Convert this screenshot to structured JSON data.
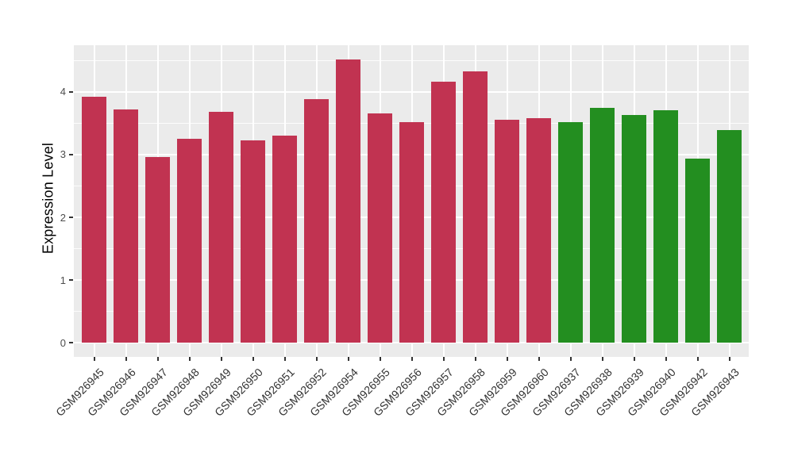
{
  "chart_data": {
    "type": "bar",
    "title": "",
    "xlabel": "",
    "ylabel": "Expression Level",
    "categories": [
      "GSM926945",
      "GSM926946",
      "GSM926947",
      "GSM926948",
      "GSM926949",
      "GSM926950",
      "GSM926951",
      "GSM926952",
      "GSM926954",
      "GSM926955",
      "GSM926956",
      "GSM926957",
      "GSM926958",
      "GSM926959",
      "GSM926960",
      "GSM926937",
      "GSM926938",
      "GSM926939",
      "GSM926940",
      "GSM926942",
      "GSM926943"
    ],
    "values": [
      3.92,
      3.72,
      2.96,
      3.25,
      3.68,
      3.23,
      3.3,
      3.88,
      4.52,
      3.66,
      3.52,
      4.16,
      4.33,
      3.56,
      3.58,
      3.51,
      3.74,
      3.63,
      3.71,
      2.94,
      3.39
    ],
    "bar_colors": [
      "#C13351",
      "#C13351",
      "#C13351",
      "#C13351",
      "#C13351",
      "#C13351",
      "#C13351",
      "#C13351",
      "#C13351",
      "#C13351",
      "#C13351",
      "#C13351",
      "#C13351",
      "#C13351",
      "#C13351",
      "#238E20",
      "#238E20",
      "#238E20",
      "#238E20",
      "#238E20",
      "#238E20"
    ],
    "group_colors": {
      "left_group": "#C13351",
      "right_group": "#238E20"
    },
    "yticks": [
      0,
      1,
      2,
      3,
      4
    ],
    "y_minor_ticks": [
      0.5,
      1.5,
      2.5,
      3.5,
      4.5
    ],
    "ylim": [
      0,
      4.75
    ],
    "x_tick_rotation_deg": -45,
    "panel_background": "#EBEBEB",
    "gridline_color": "#FFFFFF",
    "legend": "none"
  }
}
